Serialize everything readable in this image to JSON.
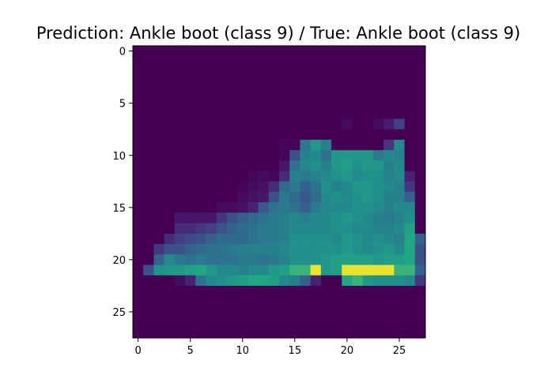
{
  "chart_data": {
    "type": "heatmap",
    "title": "Prediction: Ankle boot (class 9) / True: Ankle boot (class 9)",
    "colormap": "viridis",
    "value_range": [
      0,
      255
    ],
    "grid": false,
    "xlabel": "",
    "ylabel": "",
    "xlim": [
      -0.5,
      27.5
    ],
    "ylim": [
      27.5,
      -0.5
    ],
    "x_ticks": [
      0,
      5,
      10,
      15,
      20,
      25
    ],
    "y_ticks": [
      0,
      5,
      10,
      15,
      20,
      25
    ],
    "x_tick_labels": [
      "0",
      "5",
      "10",
      "15",
      "20",
      "25"
    ],
    "y_tick_labels": [
      "0",
      "5",
      "10",
      "15",
      "20",
      "25"
    ],
    "rows": 28,
    "cols": 28,
    "image": [
      [
        0,
        0,
        0,
        0,
        0,
        0,
        0,
        0,
        0,
        0,
        0,
        0,
        0,
        0,
        0,
        0,
        0,
        0,
        0,
        0,
        0,
        0,
        0,
        0,
        0,
        0,
        0,
        0
      ],
      [
        0,
        0,
        0,
        0,
        0,
        0,
        0,
        0,
        0,
        0,
        0,
        0,
        0,
        0,
        0,
        0,
        0,
        0,
        0,
        0,
        0,
        0,
        0,
        0,
        0,
        0,
        0,
        0
      ],
      [
        0,
        0,
        0,
        0,
        0,
        0,
        0,
        0,
        0,
        0,
        0,
        0,
        0,
        0,
        0,
        0,
        0,
        0,
        0,
        0,
        0,
        0,
        0,
        0,
        0,
        0,
        0,
        0
      ],
      [
        0,
        0,
        0,
        0,
        0,
        0,
        0,
        0,
        0,
        0,
        0,
        0,
        0,
        0,
        0,
        0,
        0,
        0,
        0,
        0,
        0,
        0,
        0,
        0,
        0,
        0,
        0,
        0
      ],
      [
        0,
        0,
        0,
        0,
        0,
        0,
        0,
        0,
        0,
        0,
        0,
        0,
        0,
        0,
        0,
        0,
        0,
        0,
        0,
        0,
        0,
        0,
        0,
        0,
        0,
        0,
        0,
        0
      ],
      [
        0,
        0,
        0,
        0,
        0,
        0,
        0,
        0,
        0,
        0,
        0,
        0,
        0,
        0,
        0,
        0,
        0,
        0,
        0,
        0,
        0,
        0,
        0,
        0,
        0,
        0,
        0,
        0
      ],
      [
        0,
        0,
        0,
        0,
        0,
        0,
        0,
        0,
        0,
        0,
        0,
        0,
        0,
        0,
        0,
        0,
        0,
        0,
        0,
        0,
        0,
        0,
        0,
        0,
        0,
        0,
        0,
        0
      ],
      [
        0,
        0,
        0,
        0,
        0,
        0,
        0,
        0,
        0,
        0,
        0,
        0,
        0,
        0,
        0,
        0,
        0,
        0,
        0,
        0,
        10,
        0,
        0,
        10,
        25,
        60,
        0,
        0
      ],
      [
        0,
        0,
        0,
        0,
        0,
        0,
        0,
        0,
        0,
        0,
        0,
        0,
        0,
        0,
        0,
        0,
        0,
        0,
        0,
        0,
        0,
        0,
        0,
        0,
        0,
        0,
        0,
        0
      ],
      [
        0,
        0,
        0,
        0,
        0,
        0,
        0,
        0,
        0,
        0,
        0,
        0,
        0,
        0,
        5,
        5,
        130,
        170,
        140,
        0,
        0,
        0,
        0,
        0,
        50,
        150,
        0,
        0
      ],
      [
        0,
        0,
        0,
        0,
        0,
        0,
        0,
        0,
        0,
        0,
        0,
        0,
        0,
        0,
        5,
        80,
        140,
        150,
        120,
        170,
        170,
        170,
        170,
        130,
        150,
        140,
        0,
        0
      ],
      [
        0,
        0,
        0,
        0,
        0,
        0,
        0,
        0,
        0,
        0,
        0,
        0,
        0,
        0,
        20,
        120,
        150,
        160,
        140,
        170,
        180,
        160,
        170,
        170,
        140,
        150,
        0,
        0
      ],
      [
        0,
        0,
        0,
        0,
        0,
        0,
        0,
        0,
        0,
        0,
        0,
        5,
        10,
        5,
        40,
        140,
        130,
        140,
        150,
        160,
        170,
        150,
        160,
        160,
        140,
        150,
        30,
        0
      ],
      [
        0,
        0,
        0,
        0,
        0,
        0,
        0,
        0,
        0,
        0,
        5,
        10,
        15,
        40,
        110,
        130,
        100,
        120,
        160,
        140,
        150,
        170,
        170,
        160,
        150,
        140,
        50,
        0
      ],
      [
        0,
        0,
        0,
        0,
        0,
        0,
        0,
        0,
        0,
        0,
        10,
        15,
        20,
        80,
        130,
        110,
        90,
        110,
        150,
        160,
        150,
        160,
        170,
        160,
        140,
        140,
        100,
        0
      ],
      [
        0,
        0,
        0,
        0,
        0,
        0,
        0,
        0,
        10,
        10,
        15,
        30,
        90,
        120,
        130,
        120,
        100,
        130,
        150,
        150,
        150,
        160,
        160,
        150,
        140,
        150,
        150,
        0
      ],
      [
        0,
        0,
        0,
        0,
        20,
        20,
        20,
        20,
        50,
        80,
        100,
        110,
        120,
        130,
        140,
        150,
        140,
        150,
        150,
        160,
        170,
        160,
        150,
        140,
        130,
        140,
        160,
        0
      ],
      [
        0,
        0,
        0,
        0,
        40,
        40,
        50,
        60,
        80,
        100,
        110,
        120,
        130,
        130,
        140,
        150,
        150,
        150,
        150,
        160,
        160,
        150,
        150,
        140,
        140,
        150,
        180,
        0
      ],
      [
        0,
        0,
        0,
        40,
        60,
        70,
        80,
        100,
        110,
        110,
        110,
        120,
        130,
        130,
        140,
        160,
        160,
        160,
        160,
        150,
        170,
        160,
        150,
        160,
        150,
        140,
        190,
        100
      ],
      [
        0,
        0,
        50,
        80,
        80,
        100,
        110,
        120,
        120,
        130,
        140,
        140,
        140,
        140,
        150,
        160,
        160,
        160,
        160,
        160,
        170,
        160,
        150,
        160,
        170,
        150,
        190,
        80
      ],
      [
        0,
        0,
        100,
        150,
        130,
        120,
        130,
        120,
        120,
        120,
        130,
        130,
        120,
        130,
        140,
        160,
        160,
        160,
        170,
        180,
        180,
        180,
        180,
        170,
        180,
        180,
        190,
        80
      ],
      [
        0,
        80,
        160,
        170,
        170,
        180,
        190,
        170,
        150,
        150,
        140,
        150,
        150,
        170,
        180,
        200,
        200,
        250,
        170,
        180,
        250,
        250,
        250,
        250,
        250,
        200,
        200,
        100
      ],
      [
        0,
        0,
        0,
        0,
        10,
        30,
        120,
        150,
        160,
        170,
        180,
        190,
        190,
        180,
        150,
        140,
        100,
        30,
        0,
        0,
        190,
        200,
        170,
        160,
        160,
        160,
        150,
        50
      ],
      [
        0,
        0,
        0,
        0,
        0,
        0,
        0,
        0,
        0,
        0,
        0,
        0,
        0,
        0,
        0,
        0,
        0,
        0,
        0,
        0,
        0,
        0,
        0,
        0,
        0,
        0,
        0,
        0
      ],
      [
        0,
        0,
        0,
        0,
        0,
        0,
        0,
        0,
        0,
        0,
        0,
        0,
        0,
        0,
        0,
        0,
        0,
        0,
        0,
        0,
        0,
        0,
        0,
        0,
        0,
        0,
        0,
        0
      ],
      [
        0,
        0,
        0,
        0,
        0,
        0,
        0,
        0,
        0,
        0,
        0,
        0,
        0,
        0,
        0,
        0,
        0,
        0,
        0,
        0,
        0,
        0,
        0,
        0,
        0,
        0,
        0,
        0
      ],
      [
        0,
        0,
        0,
        0,
        0,
        0,
        0,
        0,
        0,
        0,
        0,
        0,
        0,
        0,
        0,
        0,
        0,
        0,
        0,
        0,
        0,
        0,
        0,
        0,
        0,
        0,
        0,
        0
      ],
      [
        0,
        0,
        0,
        0,
        0,
        0,
        0,
        0,
        0,
        0,
        0,
        0,
        0,
        0,
        0,
        0,
        0,
        0,
        0,
        0,
        0,
        0,
        0,
        0,
        0,
        0,
        0,
        0
      ]
    ]
  }
}
